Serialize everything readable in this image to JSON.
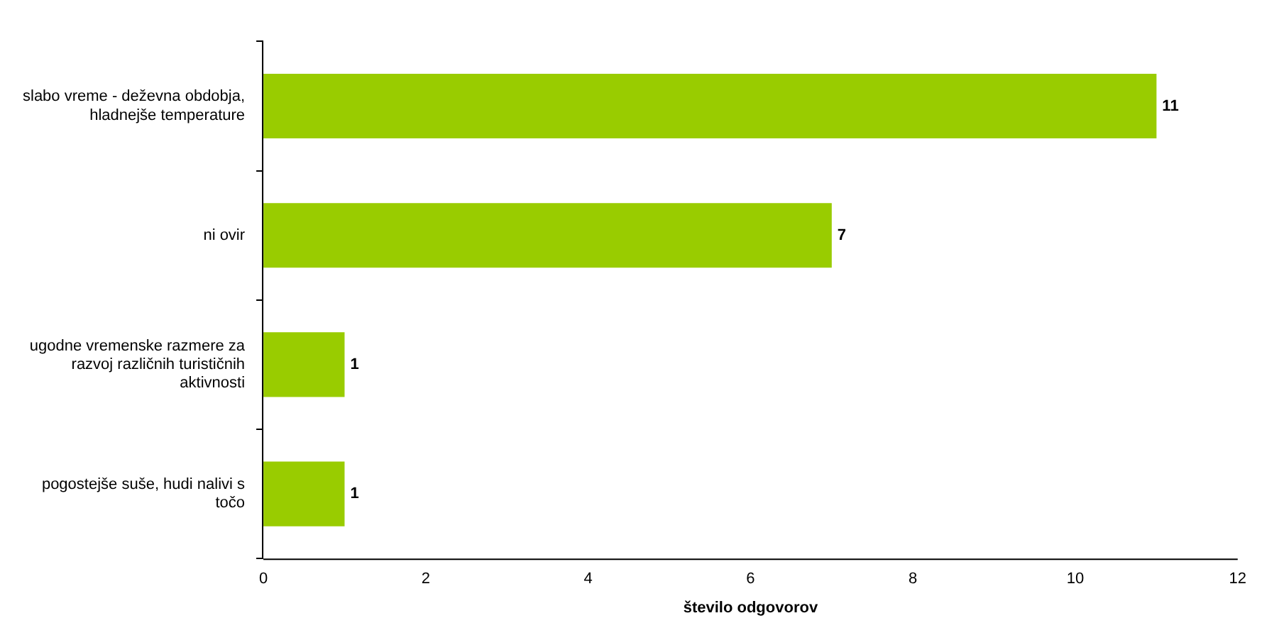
{
  "chart_data": {
    "type": "bar",
    "orientation": "horizontal",
    "xlabel": "število odgovorov",
    "categories": [
      "slabo vreme - deževna obdobja, hladnejše temperature",
      "ni ovir",
      "ugodne vremenske razmere za razvoj različnih turističnih aktivnosti",
      "pogostejše suše, hudi nalivi s točo"
    ],
    "values": [
      11,
      7,
      1,
      1
    ],
    "color": "#99cc00",
    "xlim": [
      0,
      12
    ],
    "xticks": [
      0,
      2,
      4,
      6,
      8,
      10,
      12
    ],
    "grid": false,
    "legend": false,
    "data_labels": true
  }
}
